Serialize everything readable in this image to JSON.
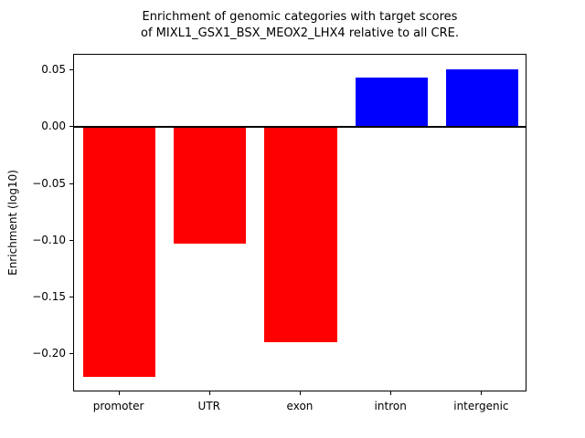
{
  "chart_data": {
    "type": "bar",
    "title_line1": "Enrichment of genomic categories with target scores",
    "title_line2": "of MIXL1_GSX1_BSX_MEOX2_LHX4 relative to all CRE.",
    "ylabel": "Enrichment (log10)",
    "xlabel": "",
    "categories": [
      "promoter",
      "UTR",
      "exon",
      "intron",
      "intergenic"
    ],
    "values": [
      -0.22,
      -0.103,
      -0.19,
      0.044,
      0.051
    ],
    "bar_colors": [
      "#ff0000",
      "#ff0000",
      "#ff0000",
      "#0000ff",
      "#0000ff"
    ],
    "negative_color": "#ff0000",
    "positive_color": "#0000ff",
    "ylim": [
      -0.234,
      0.064
    ],
    "ytick_values": [
      0.05,
      0.0,
      -0.05,
      -0.1,
      -0.15,
      -0.2
    ],
    "ytick_labels": [
      "0.05",
      "0.00",
      "−0.05",
      "−0.10",
      "−0.15",
      "−0.20"
    ],
    "zero_line": true,
    "grid": false,
    "legend": "none",
    "bar_width_fraction": 0.8
  }
}
